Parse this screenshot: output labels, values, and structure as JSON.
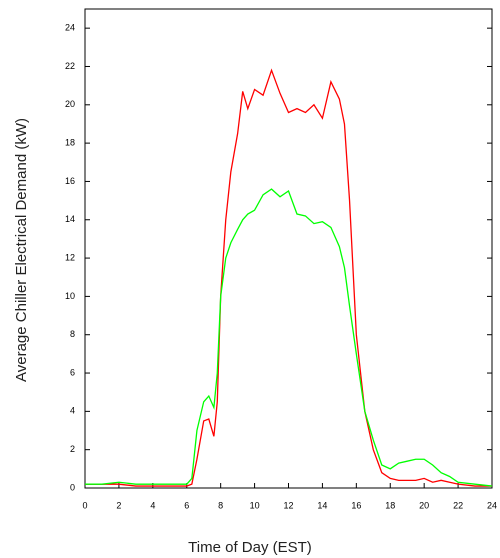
{
  "chart_data": {
    "type": "line",
    "x_label": "Time of Day (EST)",
    "y_label": "Average Chiller Electrical Demand (kW)",
    "x": [
      0,
      1,
      2,
      3,
      4,
      5,
      6,
      6.3,
      6.6,
      7,
      7.3,
      7.6,
      7.8,
      8,
      8.3,
      8.6,
      9,
      9.3,
      9.6,
      10,
      10.5,
      11,
      11.5,
      12,
      12.5,
      13,
      13.5,
      14,
      14.5,
      15,
      15.3,
      15.6,
      16,
      16.5,
      17,
      17.5,
      18,
      18.5,
      19,
      19.5,
      20,
      20.5,
      21,
      21.5,
      22,
      23,
      24
    ],
    "series": [
      {
        "color": "#ff0000",
        "values": [
          0.2,
          0.2,
          0.2,
          0.1,
          0.1,
          0.1,
          0.1,
          0.2,
          1.5,
          3.5,
          3.6,
          2.7,
          4.5,
          10,
          14,
          16.5,
          18.5,
          20.7,
          19.8,
          20.8,
          20.5,
          21.8,
          20.6,
          19.6,
          19.8,
          19.6,
          20,
          19.3,
          21.2,
          20.3,
          19,
          15,
          8,
          4,
          2,
          0.8,
          0.5,
          0.4,
          0.4,
          0.4,
          0.5,
          0.3,
          0.4,
          0.3,
          0.2,
          0.1,
          0.1
        ]
      },
      {
        "color": "#00ff00",
        "values": [
          0.2,
          0.2,
          0.3,
          0.2,
          0.2,
          0.2,
          0.2,
          0.5,
          3,
          4.5,
          4.8,
          4.2,
          6,
          10,
          12,
          12.8,
          13.5,
          14,
          14.3,
          14.5,
          15.3,
          15.6,
          15.2,
          15.5,
          14.3,
          14.2,
          13.8,
          13.9,
          13.6,
          12.6,
          11.5,
          9.5,
          7,
          4,
          2.5,
          1.2,
          1.0,
          1.3,
          1.4,
          1.5,
          1.5,
          1.2,
          0.8,
          0.6,
          0.3,
          0.2,
          0.1
        ]
      }
    ],
    "xlim": [
      0,
      24
    ],
    "xticks": [
      0,
      2,
      4,
      6,
      8,
      10,
      12,
      14,
      16,
      18,
      20,
      22,
      24
    ],
    "ylim": [
      0,
      25
    ],
    "yticks": [
      0,
      2,
      4,
      6,
      8,
      10,
      12,
      14,
      16,
      18,
      20,
      22,
      24
    ]
  }
}
